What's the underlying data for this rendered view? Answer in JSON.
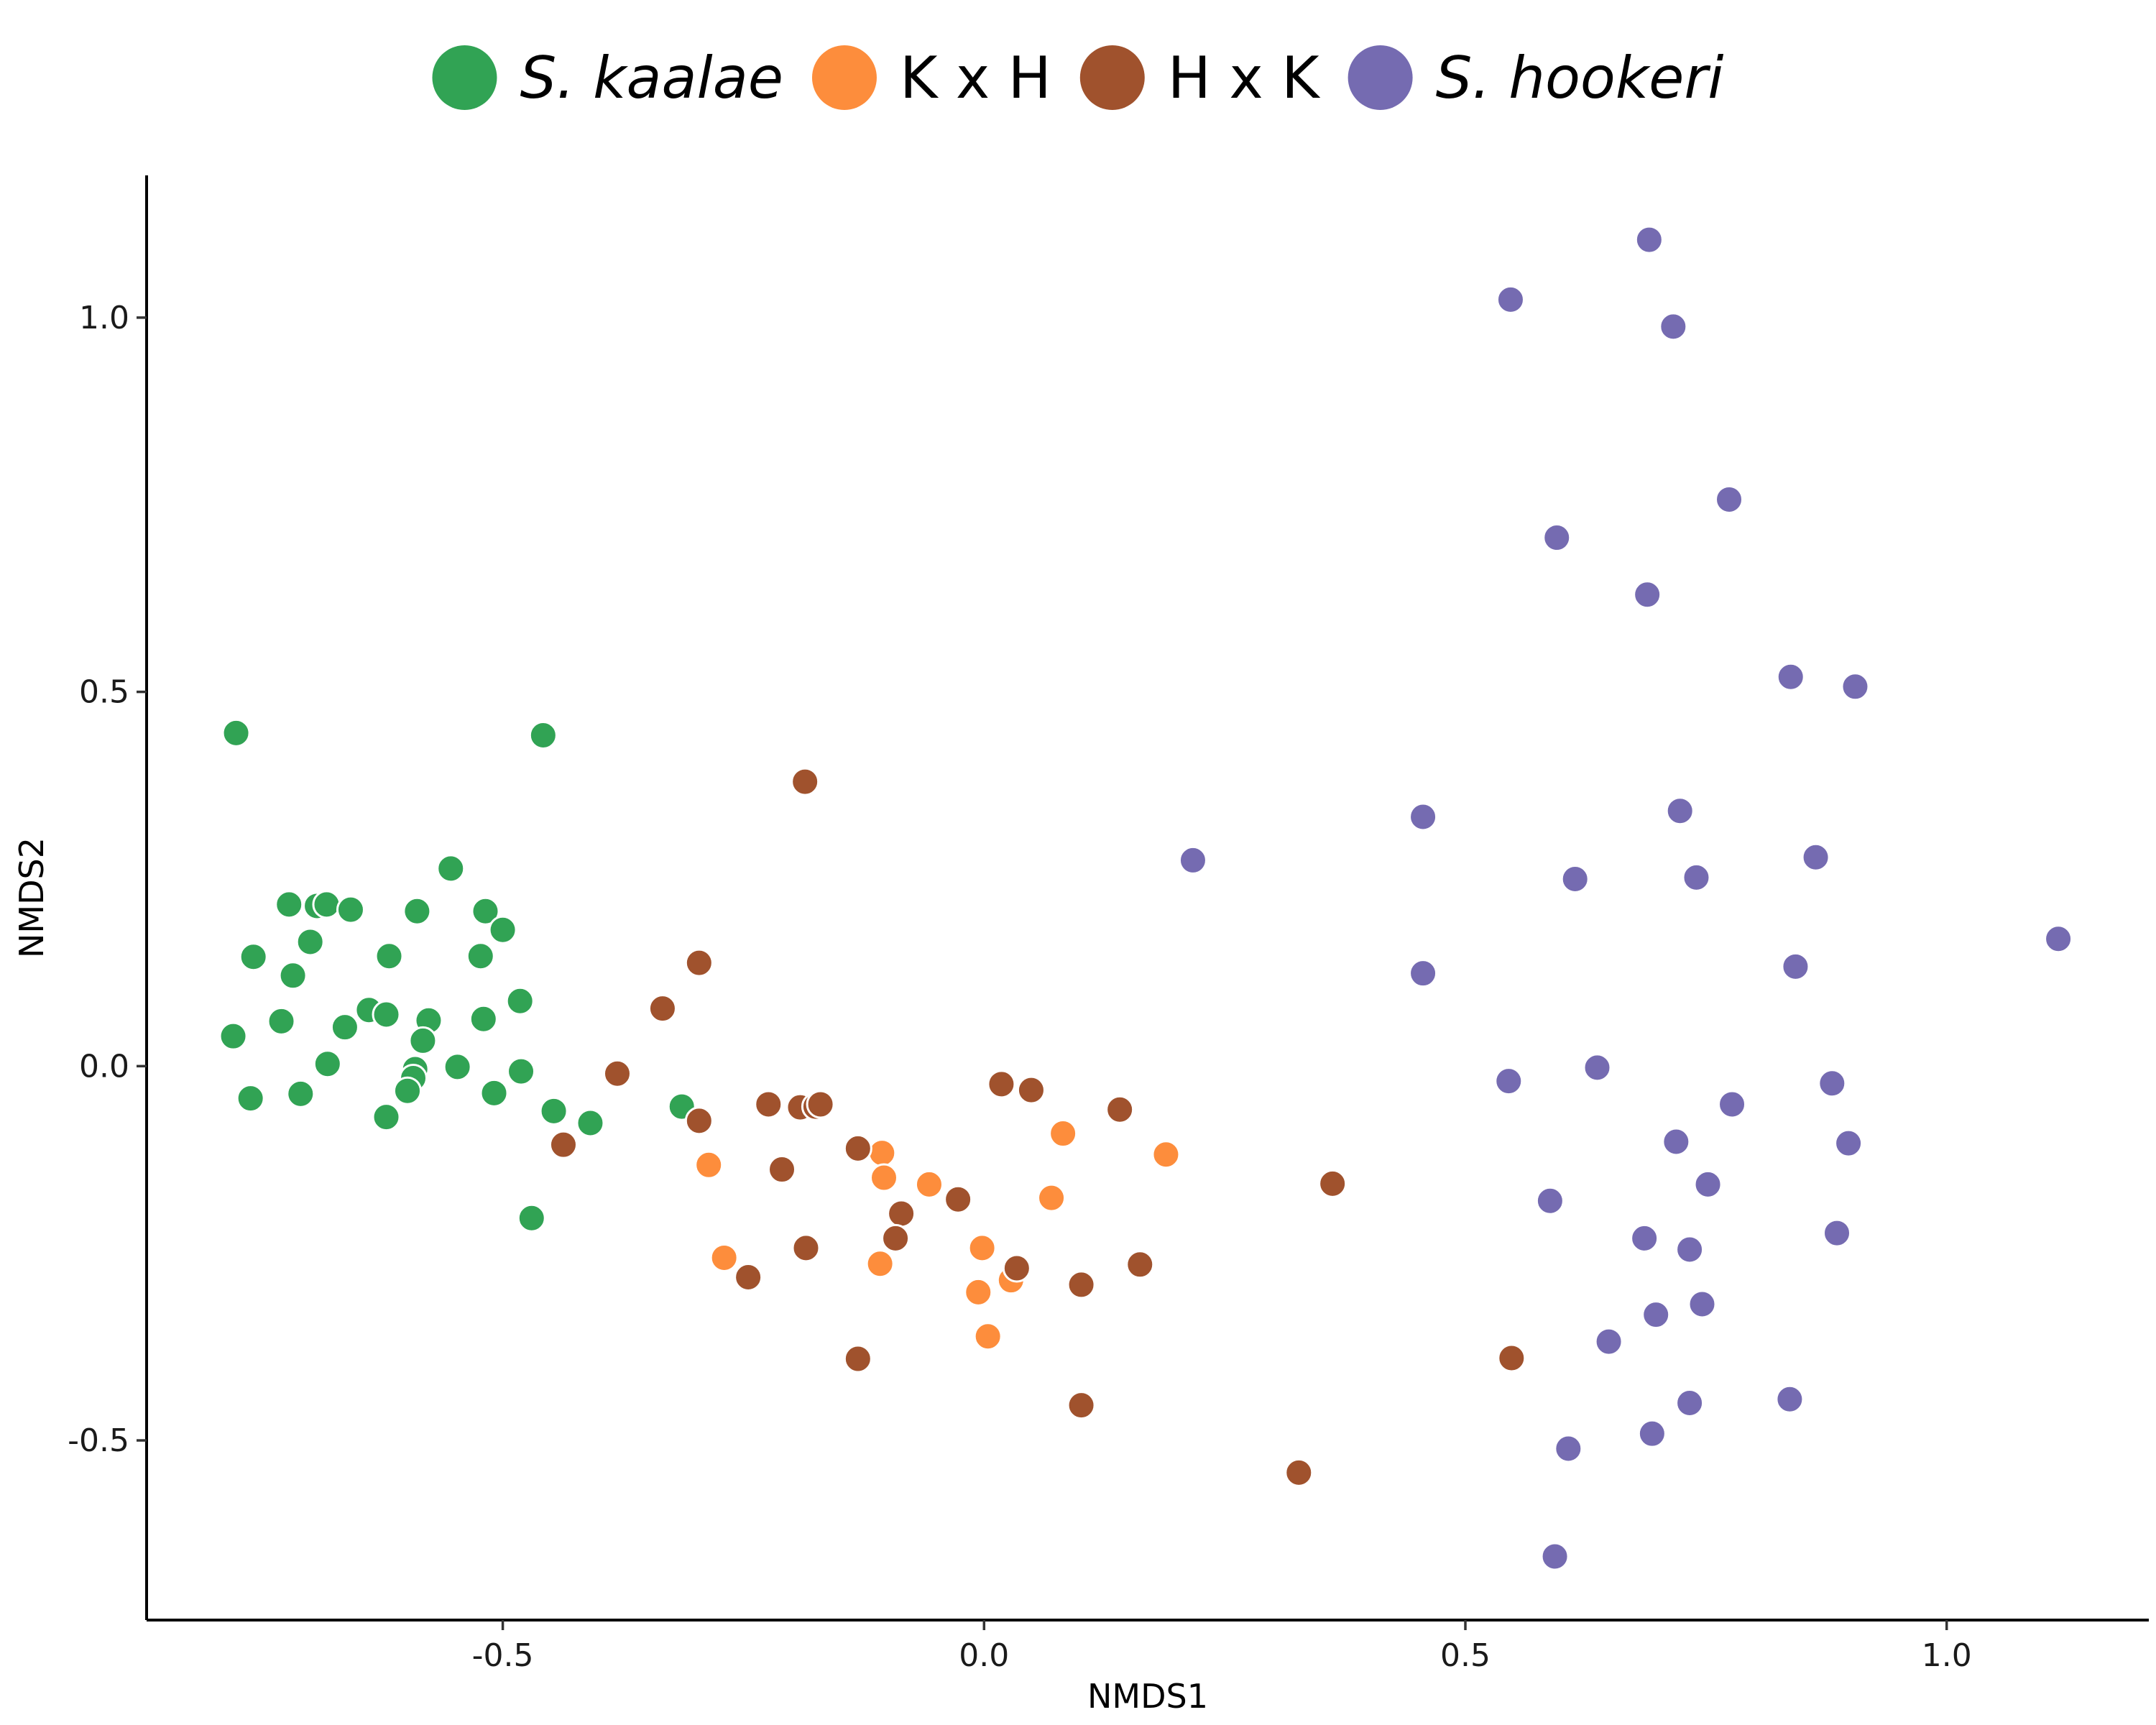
{
  "chart_data": {
    "type": "scatter",
    "xlabel": "NMDS1",
    "ylabel": "NMDS2",
    "xlim": [
      -0.87,
      1.21
    ],
    "ylim": [
      -0.74,
      1.19
    ],
    "x_ticks": [
      -0.5,
      0.0,
      0.5,
      1.0
    ],
    "x_tick_labels": [
      "-0.5",
      "0.0",
      "0.5",
      "1.0"
    ],
    "y_ticks": [
      -0.5,
      0.0,
      0.5,
      1.0
    ],
    "y_tick_labels": [
      "-0.5",
      "0.0",
      "0.5",
      "1.0"
    ],
    "grid": false,
    "legend_position": "top",
    "series": [
      {
        "name": "S. kaalae",
        "italic": true,
        "color": "#31a354",
        "points": [
          [
            -0.777,
            0.445
          ],
          [
            -0.458,
            0.442
          ],
          [
            -0.554,
            0.264
          ],
          [
            -0.722,
            0.216
          ],
          [
            -0.693,
            0.214
          ],
          [
            -0.683,
            0.216
          ],
          [
            -0.658,
            0.209
          ],
          [
            -0.589,
            0.207
          ],
          [
            -0.518,
            0.207
          ],
          [
            -0.5,
            0.182
          ],
          [
            -0.7,
            0.166
          ],
          [
            -0.759,
            0.146
          ],
          [
            -0.618,
            0.147
          ],
          [
            -0.523,
            0.147
          ],
          [
            -0.718,
            0.121
          ],
          [
            -0.482,
            0.087
          ],
          [
            -0.639,
            0.075
          ],
          [
            -0.621,
            0.069
          ],
          [
            -0.577,
            0.061
          ],
          [
            -0.52,
            0.063
          ],
          [
            -0.73,
            0.06
          ],
          [
            -0.664,
            0.052
          ],
          [
            -0.583,
            0.034
          ],
          [
            -0.78,
            0.04
          ],
          [
            -0.682,
            0.003
          ],
          [
            -0.591,
            -0.004
          ],
          [
            -0.547,
            -0.001
          ],
          [
            -0.481,
            -0.007
          ],
          [
            -0.593,
            -0.016
          ],
          [
            -0.599,
            -0.033
          ],
          [
            -0.509,
            -0.036
          ],
          [
            -0.762,
            -0.043
          ],
          [
            -0.71,
            -0.037
          ],
          [
            -0.621,
            -0.068
          ],
          [
            -0.447,
            -0.06
          ],
          [
            -0.409,
            -0.076
          ],
          [
            -0.314,
            -0.054
          ],
          [
            -0.47,
            -0.203
          ]
        ]
      },
      {
        "name": "K x H",
        "italic": false,
        "color": "#fd8d3c",
        "points": [
          [
            -0.286,
            -0.132
          ],
          [
            -0.106,
            -0.116
          ],
          [
            -0.104,
            -0.149
          ],
          [
            -0.057,
            -0.158
          ],
          [
            0.082,
            -0.09
          ],
          [
            0.189,
            -0.118
          ],
          [
            0.07,
            -0.176
          ],
          [
            -0.27,
            -0.256
          ],
          [
            -0.108,
            -0.264
          ],
          [
            -0.002,
            -0.243
          ],
          [
            0.028,
            -0.286
          ],
          [
            -0.006,
            -0.302
          ],
          [
            0.004,
            -0.361
          ]
        ]
      },
      {
        "name": "H x K",
        "italic": false,
        "color": "#a0522d",
        "points": [
          [
            -0.186,
            0.38
          ],
          [
            -0.296,
            0.138
          ],
          [
            -0.334,
            0.077
          ],
          [
            -0.381,
            -0.01
          ],
          [
            -0.296,
            -0.073
          ],
          [
            -0.224,
            -0.051
          ],
          [
            -0.191,
            -0.055
          ],
          [
            -0.175,
            -0.054
          ],
          [
            -0.17,
            -0.051
          ],
          [
            -0.437,
            -0.105
          ],
          [
            -0.131,
            -0.11
          ],
          [
            -0.21,
            -0.138
          ],
          [
            0.018,
            -0.024
          ],
          [
            0.049,
            -0.032
          ],
          [
            0.141,
            -0.058
          ],
          [
            -0.027,
            -0.178
          ],
          [
            -0.086,
            -0.197
          ],
          [
            -0.092,
            -0.23
          ],
          [
            -0.185,
            -0.243
          ],
          [
            -0.245,
            -0.282
          ],
          [
            0.034,
            -0.27
          ],
          [
            0.101,
            -0.292
          ],
          [
            0.162,
            -0.265
          ],
          [
            0.362,
            -0.157
          ],
          [
            -0.131,
            -0.391
          ],
          [
            0.101,
            -0.453
          ],
          [
            0.548,
            -0.39
          ],
          [
            0.327,
            -0.543
          ]
        ]
      },
      {
        "name": "S. hookeri",
        "italic": true,
        "color": "#756bb1",
        "points": [
          [
            0.691,
            1.104
          ],
          [
            0.547,
            1.024
          ],
          [
            0.716,
            0.988
          ],
          [
            0.774,
            0.757
          ],
          [
            0.595,
            0.706
          ],
          [
            0.689,
            0.63
          ],
          [
            0.838,
            0.52
          ],
          [
            0.905,
            0.507
          ],
          [
            0.217,
            0.275
          ],
          [
            0.456,
            0.333
          ],
          [
            0.723,
            0.341
          ],
          [
            0.614,
            0.25
          ],
          [
            0.74,
            0.252
          ],
          [
            0.864,
            0.279
          ],
          [
            1.116,
            0.17
          ],
          [
            0.843,
            0.133
          ],
          [
            0.456,
            0.124
          ],
          [
            0.545,
            -0.02
          ],
          [
            0.637,
            -0.002
          ],
          [
            0.881,
            -0.023
          ],
          [
            0.777,
            -0.051
          ],
          [
            0.719,
            -0.101
          ],
          [
            0.898,
            -0.103
          ],
          [
            0.588,
            -0.18
          ],
          [
            0.752,
            -0.158
          ],
          [
            0.686,
            -0.23
          ],
          [
            0.733,
            -0.245
          ],
          [
            0.886,
            -0.223
          ],
          [
            0.698,
            -0.332
          ],
          [
            0.746,
            -0.318
          ],
          [
            0.649,
            -0.368
          ],
          [
            0.837,
            -0.445
          ],
          [
            0.733,
            -0.45
          ],
          [
            0.694,
            -0.491
          ],
          [
            0.607,
            -0.511
          ],
          [
            0.593,
            -0.655
          ]
        ]
      }
    ]
  }
}
